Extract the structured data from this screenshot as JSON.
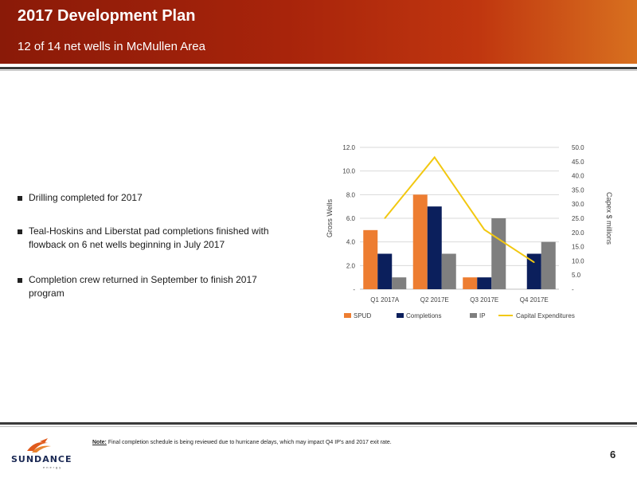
{
  "header": {
    "title": "2017 Development Plan",
    "subtitle": "12 of 14 net wells in McMullen Area"
  },
  "bullets": [
    "Drilling completed for 2017",
    "Teal-Hoskins and Liberstat pad completions finished with flowback on 6 net wells beginning in July 2017",
    "Completion crew returned in September to finish 2017 program"
  ],
  "chart_data": {
    "type": "bar",
    "categories": [
      "Q1 2017A",
      "Q2 2017E",
      "Q3 2017E",
      "Q4 2017E"
    ],
    "series": [
      {
        "name": "SPUD",
        "values": [
          5,
          8,
          1,
          0
        ],
        "color": "#ed7d31"
      },
      {
        "name": "Completions",
        "values": [
          3,
          7,
          1,
          3
        ],
        "color": "#0b1f5c"
      },
      {
        "name": "IP",
        "values": [
          1,
          3,
          6,
          4
        ],
        "color": "#7f7f7f"
      }
    ],
    "line_series": {
      "name": "Capital Expenditures",
      "values": [
        25,
        46.5,
        21,
        9.5
      ],
      "color": "#f2c811",
      "axis": "secondary"
    },
    "ylabel": "Gross Wells",
    "y2label": "Capex $ millions",
    "ylim": [
      0,
      12
    ],
    "y2lim": [
      0,
      50
    ],
    "yticks": [
      "-",
      "2.0",
      "4.0",
      "6.0",
      "8.0",
      "10.0",
      "12.0"
    ],
    "y2ticks": [
      "-",
      "5.0",
      "10.0",
      "15.0",
      "20.0",
      "25.0",
      "30.0",
      "35.0",
      "40.0",
      "45.0",
      "50.0"
    ],
    "legend": "bottom",
    "grid": true
  },
  "footer": {
    "note_label": "Note:",
    "note_text": " Final completion schedule is being reviewed due to hurricane delays, which may impact Q4 IP’s and 2017 exit rate.",
    "page_number": "6",
    "logo_text": "SUNDANCE",
    "logo_sub": "energy"
  },
  "colors": {
    "header_dark": "#8a1a08",
    "header_light": "#d8701f",
    "accent_logo": "#e05a1c"
  }
}
